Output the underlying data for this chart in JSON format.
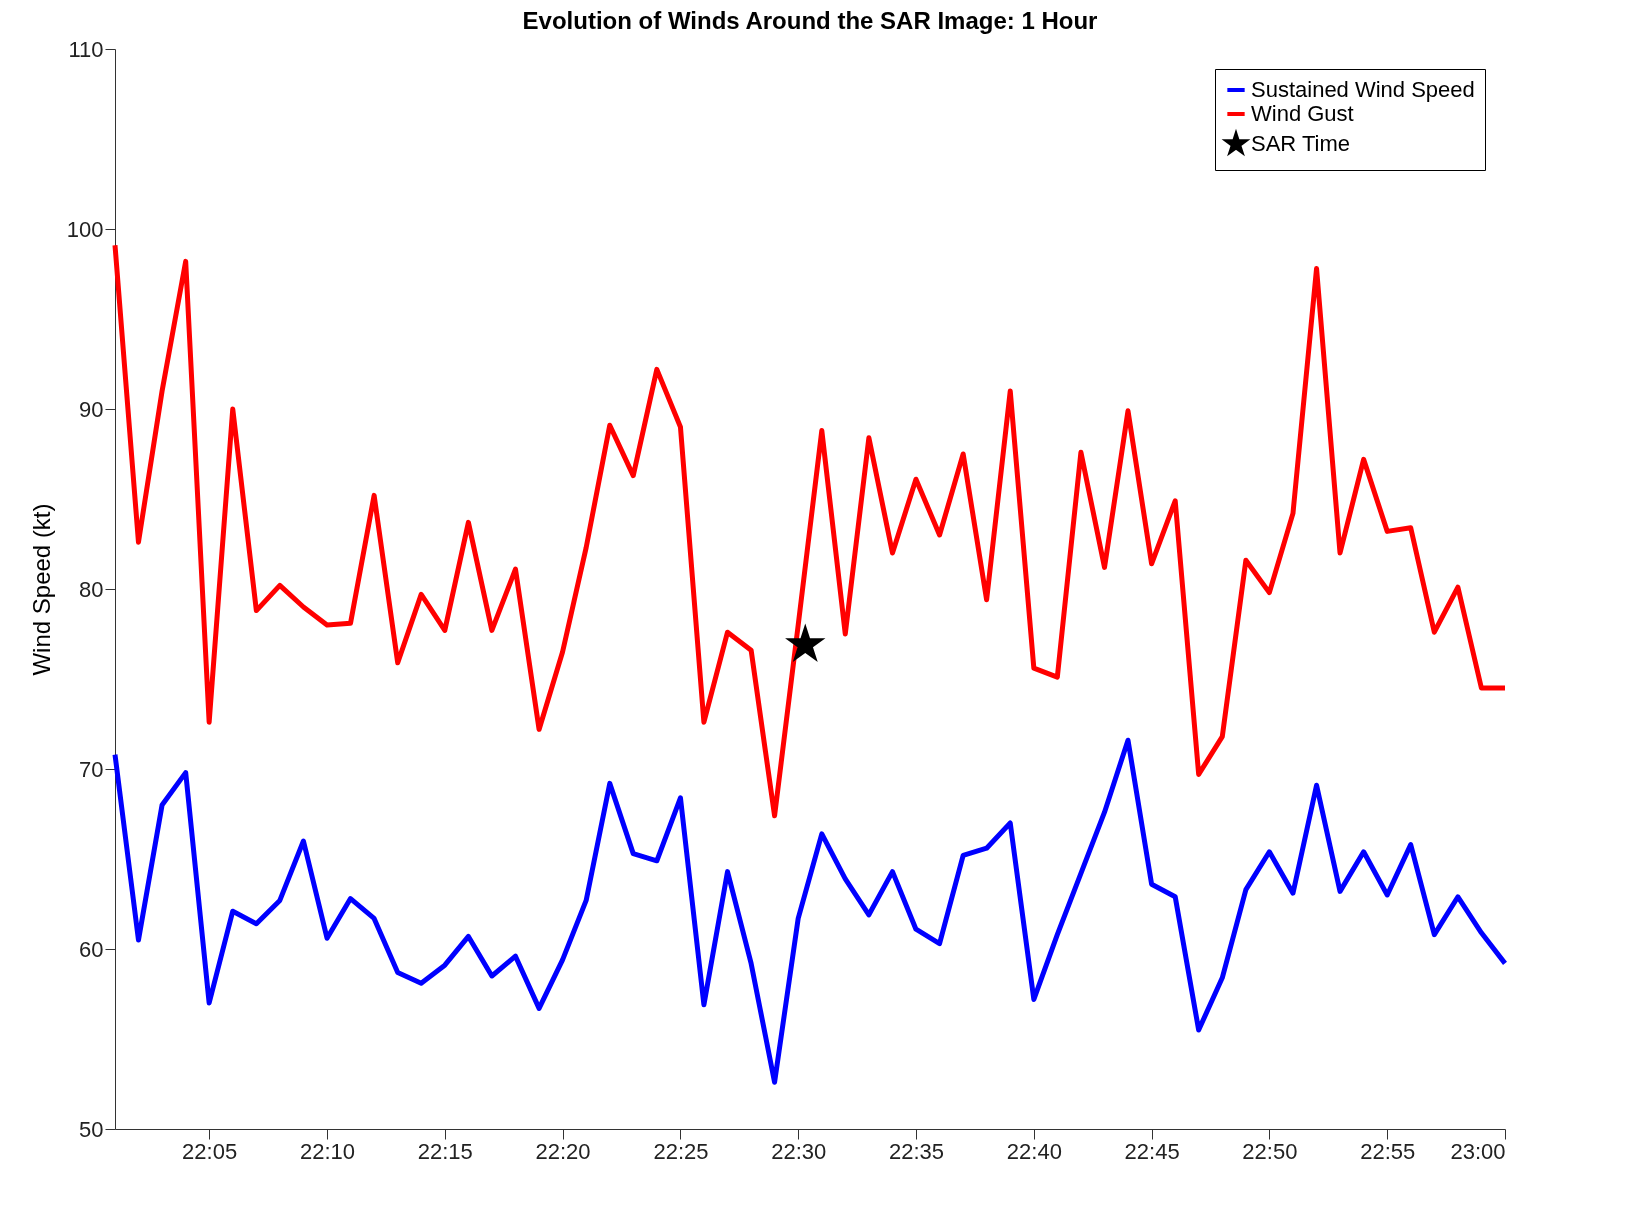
{
  "chart_data": {
    "type": "line",
    "title": "Evolution of Winds Around the SAR Image: 1 Hour",
    "ylabel": "Wind Speed (kt)",
    "x": [
      22.0167,
      22.0333,
      22.05,
      22.0667,
      22.0833,
      22.1,
      22.1167,
      22.1333,
      22.15,
      22.1667,
      22.1833,
      22.2,
      22.2167,
      22.2333,
      22.25,
      22.2667,
      22.2833,
      22.3,
      22.3167,
      22.3333,
      22.35,
      22.3667,
      22.3833,
      22.4,
      22.4167,
      22.4333,
      22.45,
      22.4667,
      22.4833,
      22.5,
      22.5167,
      22.5333,
      22.55,
      22.5667,
      22.5833,
      22.6,
      22.6167,
      22.6333,
      22.65,
      22.6667,
      22.6833,
      22.7,
      22.7167,
      22.7333,
      22.75,
      22.7667,
      22.7833,
      22.8,
      22.8167,
      22.8333,
      22.85,
      22.8667,
      22.8833,
      22.9,
      22.9167,
      22.9333,
      22.95,
      22.9667,
      22.9833,
      23
    ],
    "series": [
      {
        "name": "Sustained Wind Speed",
        "color": "#0000ff",
        "values": [
          70.8,
          60.5,
          68,
          69.8,
          57,
          62.1,
          61.4,
          62.7,
          66,
          60.6,
          62.8,
          61.7,
          58.7,
          58.1,
          59.1,
          60.7,
          58.5,
          59.6,
          56.7,
          59.4,
          62.7,
          69.2,
          65.3,
          64.9,
          68.4,
          56.9,
          64.3,
          59.2,
          52.6,
          61.7,
          66.4,
          63.9,
          61.9,
          64.3,
          61.1,
          60.3,
          65.2,
          65.6,
          67,
          57.2,
          60.8,
          64.2,
          67.6,
          71.6,
          63.6,
          62.9,
          55.5,
          58.4,
          63.3,
          65.4,
          63.1,
          69.1,
          63.2,
          65.4,
          63,
          65.8,
          60.8,
          62.9,
          60.9,
          59.2
        ]
      },
      {
        "name": "Wind Gust",
        "color": "#ff0000",
        "values": [
          99.1,
          82.6,
          91,
          98.2,
          72.6,
          90,
          78.8,
          80.2,
          79,
          78,
          78.1,
          85.2,
          75.9,
          79.7,
          77.7,
          83.7,
          77.7,
          81.1,
          72.2,
          76.5,
          82.3,
          89.1,
          86.3,
          92.2,
          89,
          72.6,
          77.6,
          76.6,
          67.4,
          78,
          88.8,
          77.5,
          88.4,
          82,
          86.1,
          83,
          87.5,
          79.4,
          91,
          75.6,
          75.1,
          87.6,
          81.2,
          89.9,
          81.4,
          84.9,
          69.7,
          71.8,
          81.6,
          79.8,
          84.2,
          97.8,
          82,
          87.2,
          83.2,
          83.4,
          77.6,
          80.1,
          74.5,
          74.5
        ]
      },
      {
        "name": "SAR Time",
        "type": "scatter",
        "marker": "star",
        "color": "#000000",
        "x": [
          22.505
        ],
        "values": [
          76.9
        ]
      }
    ],
    "xlim": [
      22.0167,
      23
    ],
    "xticks": [
      {
        "value": 22.0833,
        "label": "22:05"
      },
      {
        "value": 22.1667,
        "label": "22:10"
      },
      {
        "value": 22.25,
        "label": "22:15"
      },
      {
        "value": 22.3333,
        "label": "22:20"
      },
      {
        "value": 22.4167,
        "label": "22:25"
      },
      {
        "value": 22.5,
        "label": "22:30"
      },
      {
        "value": 22.5833,
        "label": "22:35"
      },
      {
        "value": 22.6667,
        "label": "22:40"
      },
      {
        "value": 22.75,
        "label": "22:45"
      },
      {
        "value": 22.8333,
        "label": "22:50"
      },
      {
        "value": 22.9167,
        "label": "22:55"
      },
      {
        "value": 23,
        "label": "23:00"
      }
    ],
    "ylim": [
      50,
      110
    ],
    "yticks": [
      50,
      60,
      70,
      80,
      90,
      100,
      110
    ],
    "legend": "top right",
    "line_style": "solid"
  }
}
